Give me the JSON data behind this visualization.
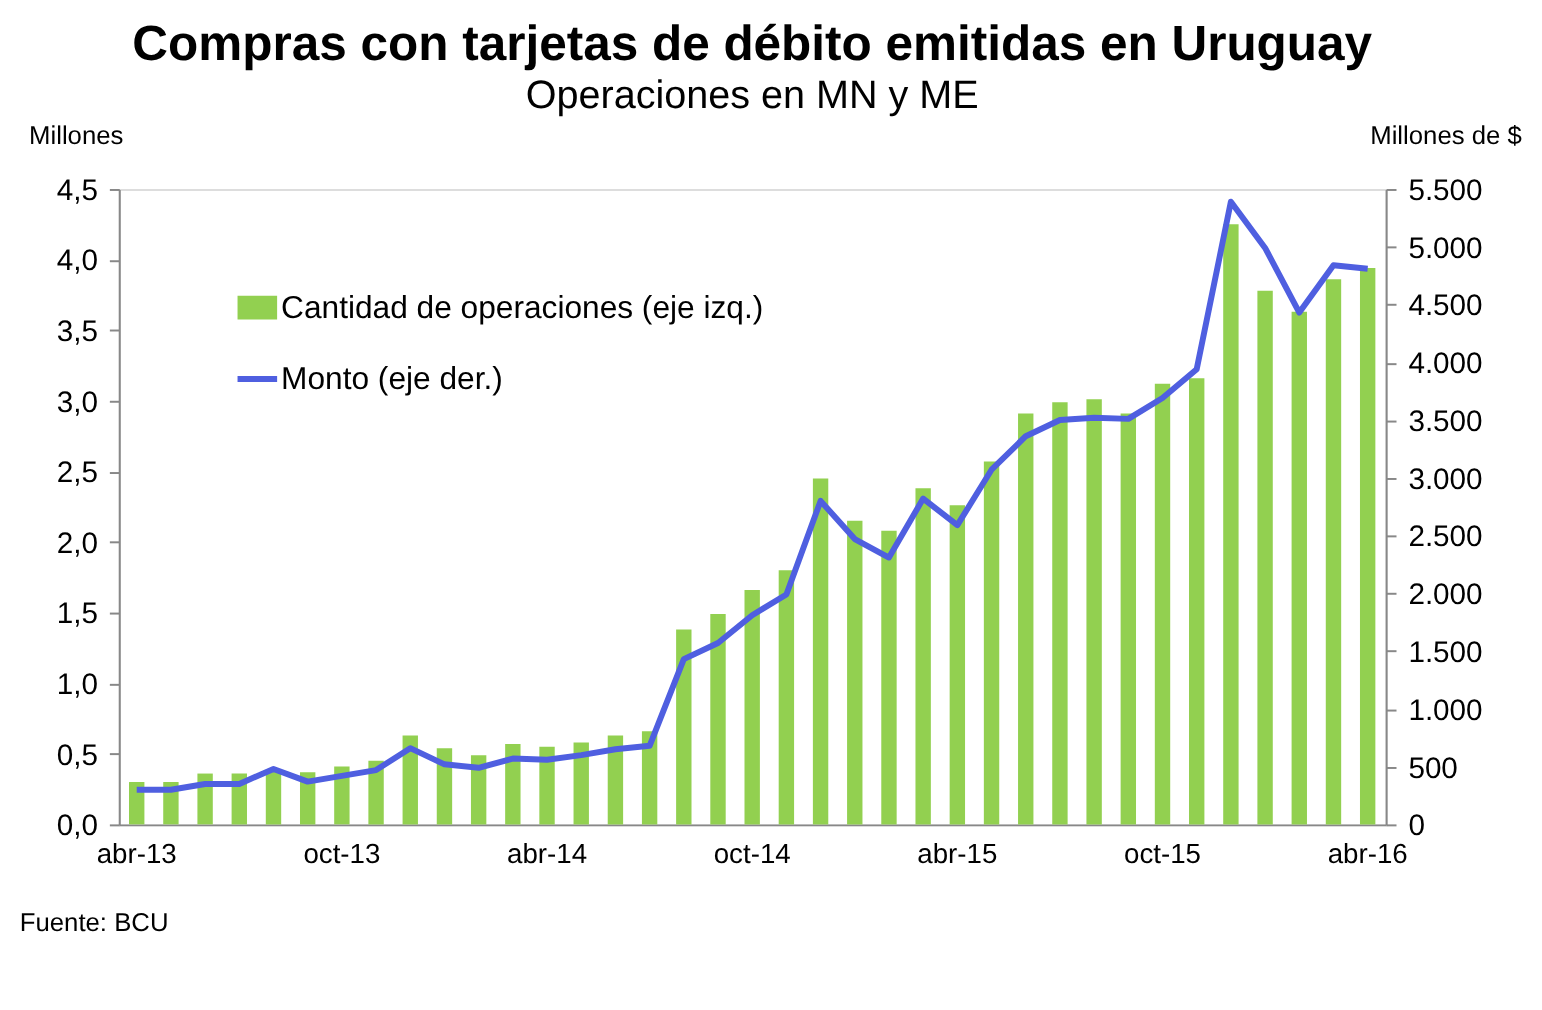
{
  "chart_data": {
    "type": "bar",
    "title": "Compras con tarjetas de débito emitidas en Uruguay",
    "subtitle": "Operaciones en MN y ME",
    "ylabel": "Millones",
    "y2label": "Millones de $",
    "categories": [
      "abr-13",
      null,
      null,
      null,
      null,
      null,
      "oct-13",
      null,
      null,
      null,
      null,
      null,
      "abr-14",
      null,
      null,
      null,
      null,
      null,
      "oct-14",
      null,
      null,
      null,
      null,
      null,
      "abr-15",
      null,
      null,
      null,
      null,
      null,
      "oct-15",
      null,
      null,
      null,
      null,
      null,
      "abr-16"
    ],
    "series": [
      {
        "name": "Cantidad de operaciones (eje izq.)",
        "color": "#92d050",
        "values": [
          0.3,
          0.3,
          0.36,
          0.36,
          0.38,
          0.37,
          0.41,
          0.45,
          0.63,
          0.54,
          0.49,
          0.57,
          0.55,
          0.58,
          0.63,
          0.66,
          1.38,
          1.49,
          1.66,
          1.8,
          2.45,
          2.15,
          2.08,
          2.38,
          2.26,
          2.57,
          2.91,
          2.99,
          3.01,
          2.91,
          3.12,
          3.16,
          4.25,
          3.78,
          3.63,
          3.86,
          3.94
        ]
      },
      {
        "name": "Monto (eje der.)",
        "type": "line",
        "axis": "y2",
        "color": "#4f5fe0",
        "values": [
          300,
          300,
          350,
          350,
          480,
          370,
          420,
          470,
          660,
          520,
          490,
          570,
          560,
          600,
          650,
          680,
          1430,
          1570,
          1810,
          1990,
          2800,
          2470,
          2310,
          2820,
          2590,
          3070,
          3360,
          3500,
          3520,
          3510,
          3690,
          3940,
          5390,
          4990,
          4430,
          4840,
          4810
        ]
      }
    ],
    "ylim": [
      0,
      4.5
    ],
    "yticks": [
      {
        "value": 0,
        "label": "0,0"
      },
      {
        "value": 0.5,
        "label": "0,5"
      },
      {
        "value": 1,
        "label": "1,0"
      },
      {
        "value": 1.5,
        "label": "1,5"
      },
      {
        "value": 2,
        "label": "2,0"
      },
      {
        "value": 2.5,
        "label": "2,5"
      },
      {
        "value": 3,
        "label": "3,0"
      },
      {
        "value": 3.5,
        "label": "3,5"
      },
      {
        "value": 4,
        "label": "4,0"
      },
      {
        "value": 4.5,
        "label": "4,5"
      }
    ],
    "y2lim": [
      0,
      5500
    ],
    "y2ticks": [
      0,
      500,
      {
        "value": 1000,
        "label": "1.000"
      },
      {
        "value": 1500,
        "label": "1.500"
      },
      {
        "value": 2000,
        "label": "2.000"
      },
      {
        "value": 2500,
        "label": "2.500"
      },
      {
        "value": 3000,
        "label": "3.000"
      },
      {
        "value": 3500,
        "label": "3.500"
      },
      {
        "value": 4000,
        "label": "4.000"
      },
      {
        "value": 4500,
        "label": "4.500"
      },
      {
        "value": 5000,
        "label": "5.000"
      },
      {
        "value": 5500,
        "label": "5.500"
      }
    ],
    "grid": false,
    "legend": "top left",
    "annotations": [
      "Fuente: BCU"
    ]
  }
}
